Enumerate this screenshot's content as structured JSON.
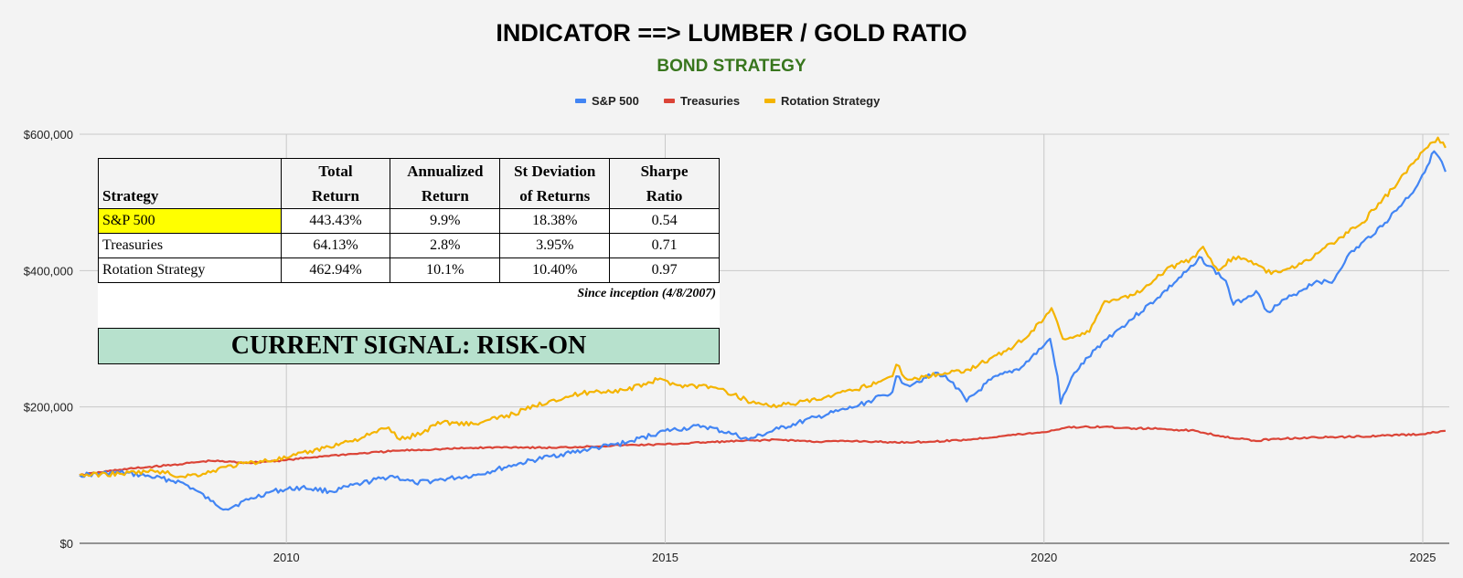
{
  "chart_data": {
    "type": "line",
    "title": "INDICATOR ==> LUMBER / GOLD RATIO",
    "subtitle": "BOND STRATEGY",
    "legend_position": "top-center",
    "grid": true,
    "xlabel": "",
    "ylabel": "",
    "xlim": [
      2007.27,
      2025.35
    ],
    "ylim": [
      0,
      600000
    ],
    "x_ticks": [
      2010,
      2015,
      2020,
      2025
    ],
    "x_tick_labels": [
      "2010",
      "2015",
      "2020",
      "2025"
    ],
    "y_ticks": [
      0,
      200000,
      400000,
      600000
    ],
    "y_tick_labels": [
      "$0",
      "$200,000",
      "$400,000",
      "$600,000"
    ],
    "series": [
      {
        "name": "S&P 500",
        "color": "#4285f4",
        "points": [
          [
            2007.27,
            100000
          ],
          [
            2007.8,
            104000
          ],
          [
            2008.2,
            98000
          ],
          [
            2008.6,
            90000
          ],
          [
            2008.8,
            78000
          ],
          [
            2009.0,
            62000
          ],
          [
            2009.2,
            50000
          ],
          [
            2009.5,
            64000
          ],
          [
            2009.8,
            76000
          ],
          [
            2010.2,
            82000
          ],
          [
            2010.6,
            76000
          ],
          [
            2011.0,
            88000
          ],
          [
            2011.4,
            99000
          ],
          [
            2011.7,
            88000
          ],
          [
            2012.0,
            93000
          ],
          [
            2012.5,
            100000
          ],
          [
            2013.0,
            115000
          ],
          [
            2013.5,
            128000
          ],
          [
            2014.0,
            138000
          ],
          [
            2014.5,
            148000
          ],
          [
            2015.0,
            165000
          ],
          [
            2015.5,
            172000
          ],
          [
            2015.9,
            160000
          ],
          [
            2016.1,
            152000
          ],
          [
            2016.5,
            168000
          ],
          [
            2017.0,
            185000
          ],
          [
            2017.5,
            200000
          ],
          [
            2018.0,
            222000
          ],
          [
            2018.05,
            245000
          ],
          [
            2018.2,
            232000
          ],
          [
            2018.6,
            250000
          ],
          [
            2018.8,
            236000
          ],
          [
            2018.98,
            208000
          ],
          [
            2019.3,
            240000
          ],
          [
            2019.7,
            258000
          ],
          [
            2020.0,
            290000
          ],
          [
            2020.08,
            300000
          ],
          [
            2020.18,
            245000
          ],
          [
            2020.22,
            205000
          ],
          [
            2020.4,
            250000
          ],
          [
            2020.8,
            298000
          ],
          [
            2021.0,
            315000
          ],
          [
            2021.5,
            360000
          ],
          [
            2022.0,
            410000
          ],
          [
            2022.05,
            420000
          ],
          [
            2022.4,
            385000
          ],
          [
            2022.5,
            350000
          ],
          [
            2022.8,
            370000
          ],
          [
            2022.95,
            340000
          ],
          [
            2023.3,
            365000
          ],
          [
            2023.6,
            385000
          ],
          [
            2023.8,
            382000
          ],
          [
            2024.0,
            420000
          ],
          [
            2024.5,
            470000
          ],
          [
            2024.9,
            520000
          ],
          [
            2025.15,
            575000
          ],
          [
            2025.25,
            560000
          ],
          [
            2025.3,
            545000
          ]
        ]
      },
      {
        "name": "Treasuries",
        "color": "#db4437",
        "points": [
          [
            2007.27,
            100000
          ],
          [
            2007.8,
            108000
          ],
          [
            2008.5,
            115000
          ],
          [
            2009.0,
            121000
          ],
          [
            2009.5,
            118000
          ],
          [
            2010.0,
            122000
          ],
          [
            2010.5,
            128000
          ],
          [
            2011.0,
            132000
          ],
          [
            2011.5,
            136000
          ],
          [
            2012.0,
            138000
          ],
          [
            2012.5,
            140000
          ],
          [
            2013.0,
            141000
          ],
          [
            2013.5,
            140000
          ],
          [
            2014.0,
            142000
          ],
          [
            2014.5,
            144000
          ],
          [
            2015.0,
            145000
          ],
          [
            2015.5,
            148000
          ],
          [
            2016.0,
            150000
          ],
          [
            2016.5,
            152000
          ],
          [
            2017.0,
            149000
          ],
          [
            2017.5,
            150000
          ],
          [
            2018.0,
            148000
          ],
          [
            2018.5,
            149000
          ],
          [
            2019.0,
            152000
          ],
          [
            2019.5,
            158000
          ],
          [
            2020.0,
            163000
          ],
          [
            2020.3,
            170000
          ],
          [
            2020.8,
            171000
          ],
          [
            2021.0,
            169000
          ],
          [
            2021.5,
            168000
          ],
          [
            2022.0,
            165000
          ],
          [
            2022.3,
            158000
          ],
          [
            2022.8,
            150000
          ],
          [
            2023.0,
            153000
          ],
          [
            2023.5,
            155000
          ],
          [
            2024.0,
            156000
          ],
          [
            2024.5,
            158000
          ],
          [
            2025.0,
            160000
          ],
          [
            2025.3,
            165000
          ]
        ]
      },
      {
        "name": "Rotation Strategy",
        "color": "#f4b400",
        "points": [
          [
            2007.27,
            100000
          ],
          [
            2007.8,
            102000
          ],
          [
            2008.3,
            106000
          ],
          [
            2008.6,
            98000
          ],
          [
            2008.9,
            102000
          ],
          [
            2009.2,
            112000
          ],
          [
            2009.5,
            118000
          ],
          [
            2010.0,
            125000
          ],
          [
            2010.5,
            140000
          ],
          [
            2011.0,
            155000
          ],
          [
            2011.35,
            170000
          ],
          [
            2011.5,
            152000
          ],
          [
            2011.8,
            162000
          ],
          [
            2012.0,
            178000
          ],
          [
            2012.5,
            175000
          ],
          [
            2013.0,
            190000
          ],
          [
            2013.5,
            210000
          ],
          [
            2014.0,
            222000
          ],
          [
            2014.5,
            225000
          ],
          [
            2014.9,
            240000
          ],
          [
            2015.2,
            232000
          ],
          [
            2015.6,
            230000
          ],
          [
            2015.9,
            218000
          ],
          [
            2016.2,
            205000
          ],
          [
            2016.5,
            202000
          ],
          [
            2017.0,
            210000
          ],
          [
            2017.5,
            225000
          ],
          [
            2018.0,
            245000
          ],
          [
            2018.05,
            262000
          ],
          [
            2018.2,
            240000
          ],
          [
            2018.6,
            248000
          ],
          [
            2019.0,
            255000
          ],
          [
            2019.5,
            282000
          ],
          [
            2019.8,
            305000
          ],
          [
            2020.1,
            345000
          ],
          [
            2020.25,
            300000
          ],
          [
            2020.6,
            310000
          ],
          [
            2020.8,
            355000
          ],
          [
            2021.2,
            365000
          ],
          [
            2021.6,
            400000
          ],
          [
            2022.0,
            420000
          ],
          [
            2022.1,
            435000
          ],
          [
            2022.3,
            400000
          ],
          [
            2022.5,
            420000
          ],
          [
            2022.8,
            410000
          ],
          [
            2023.0,
            395000
          ],
          [
            2023.4,
            410000
          ],
          [
            2023.8,
            440000
          ],
          [
            2024.2,
            470000
          ],
          [
            2024.6,
            520000
          ],
          [
            2025.0,
            575000
          ],
          [
            2025.2,
            595000
          ],
          [
            2025.3,
            580000
          ]
        ]
      }
    ]
  },
  "table": {
    "headers": [
      "Strategy",
      "Total Return",
      "Annualized Return",
      "St Deviation of Returns",
      "Sharpe Ratio"
    ],
    "header_lines": [
      [
        "",
        "Strategy"
      ],
      [
        "Total",
        "Return"
      ],
      [
        "Annualized",
        "Return"
      ],
      [
        "St Deviation",
        "of Returns"
      ],
      [
        "Sharpe",
        "Ratio"
      ]
    ],
    "rows": [
      [
        "S&P 500",
        "443.43%",
        "9.9%",
        "18.38%",
        "0.54"
      ],
      [
        "Treasuries",
        "64.13%",
        "2.8%",
        "3.95%",
        "0.71"
      ],
      [
        "Rotation Strategy",
        "462.94%",
        "10.1%",
        "10.40%",
        "0.97"
      ]
    ],
    "highlight_color": "#ffff00",
    "note": "Since inception (4/8/2007)"
  },
  "signal": {
    "text": "CURRENT SIGNAL: RISK-ON",
    "color": "#b7e1cd"
  }
}
